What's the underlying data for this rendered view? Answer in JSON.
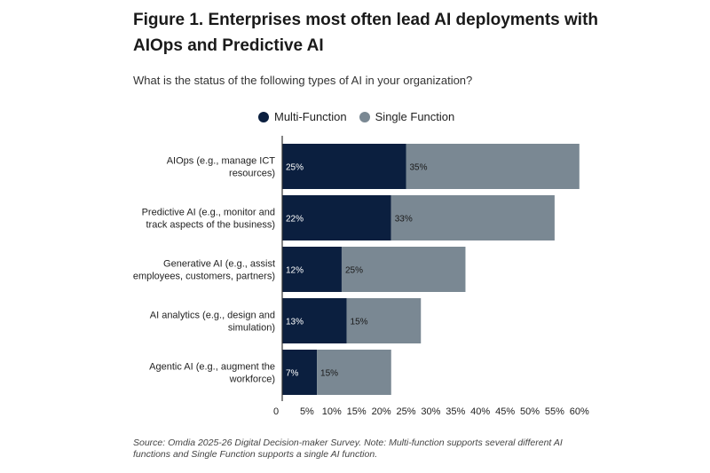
{
  "title": "Figure 1. Enterprises most often lead AI deployments with AIOps and Predictive AI",
  "subtitle": "What is the status of the following types of AI in your organization?",
  "source": "Source: Omdia 2025-26 Digital Decision-maker Survey. Note: Multi-function supports several different AI functions and Single Function supports a single AI function.",
  "colors": {
    "multi": "#0b1f3f",
    "single": "#7a8893",
    "axis": "#333333"
  },
  "chart_data": {
    "type": "bar",
    "orientation": "horizontal",
    "stacked": true,
    "title": "Figure 1. Enterprises most often lead AI deployments with AIOps and Predictive AI",
    "subtitle": "What is the status of the following types of AI in your organization?",
    "categories": [
      [
        "AIOps (e.g., manage ICT",
        "resources)"
      ],
      [
        "Predictive AI (e.g., monitor and",
        "track aspects of the business)"
      ],
      [
        "Generative AI (e.g., assist",
        "employees, customers, partners)"
      ],
      [
        "AI analytics (e.g., design and",
        "simulation)"
      ],
      [
        "Agentic AI (e.g., augment the",
        "workforce)"
      ]
    ],
    "series": [
      {
        "name": "Multi-Function",
        "values": [
          25,
          22,
          12,
          13,
          7
        ]
      },
      {
        "name": "Single Function",
        "values": [
          35,
          33,
          25,
          15,
          15
        ]
      }
    ],
    "xlim": [
      0,
      60
    ],
    "xticks": [
      "0",
      "5%",
      "10%",
      "15%",
      "20%",
      "25%",
      "30%",
      "35%",
      "40%",
      "45%",
      "50%",
      "55%",
      "60%"
    ],
    "value_format": "%",
    "legend": "top-center"
  }
}
